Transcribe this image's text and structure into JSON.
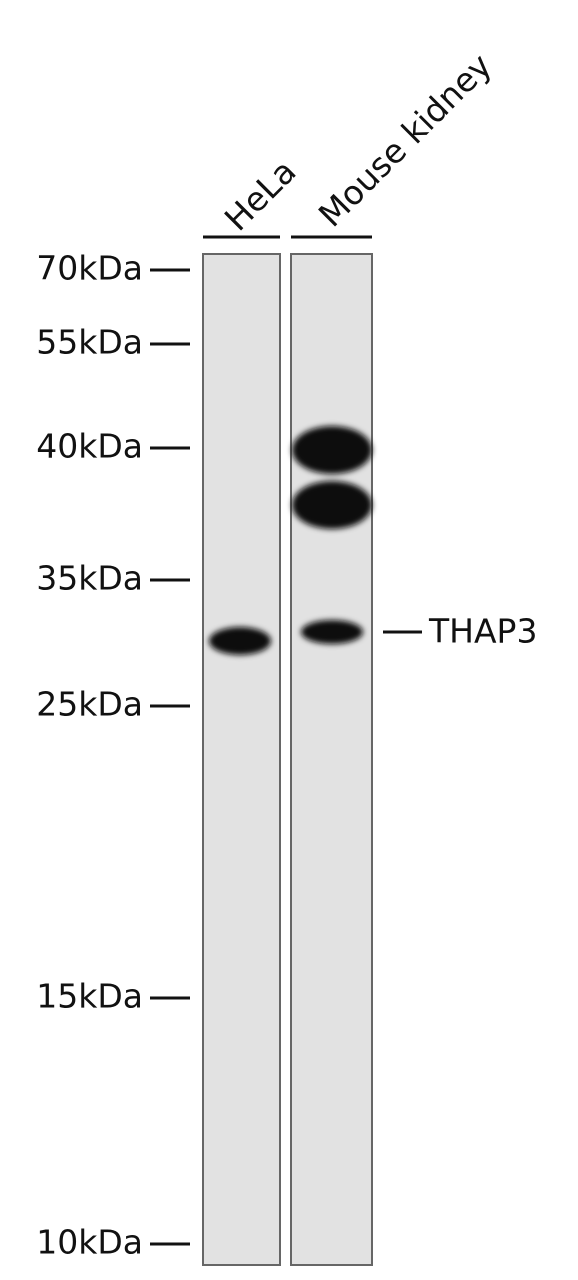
{
  "lanes": [
    {
      "label": "HeLa"
    },
    {
      "label": "Mouse kidney"
    }
  ],
  "markers": [
    "70kDa",
    "55kDa",
    "40kDa",
    "35kDa",
    "25kDa",
    "15kDa",
    "10kDa"
  ],
  "band_label": "THAP3"
}
